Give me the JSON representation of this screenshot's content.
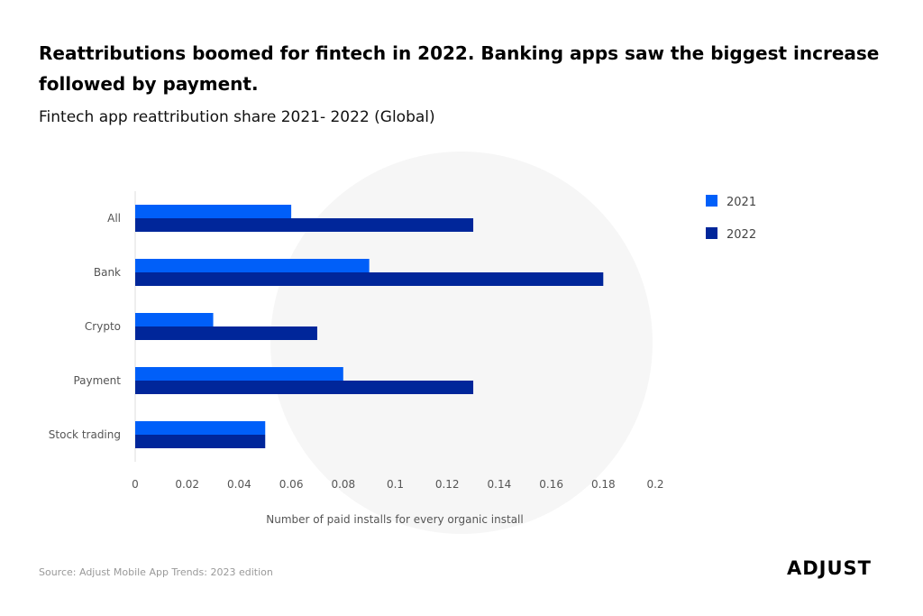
{
  "title": "Reattributions boomed for fintech in 2022. Banking apps saw the biggest increase followed by payment.",
  "subtitle": "Fintech app reattribution share 2021- 2022 (Global)",
  "source": "Source: Adjust Mobile App Trends: 2023 edition",
  "logo": "ADJUST",
  "chart_data": {
    "type": "bar",
    "orientation": "horizontal",
    "categories": [
      "All",
      "Bank",
      "Crypto",
      "Payment",
      "Stock trading"
    ],
    "series": [
      {
        "name": "2021",
        "color": "#005ff9",
        "values": [
          0.06,
          0.09,
          0.03,
          0.08,
          0.05
        ]
      },
      {
        "name": "2022",
        "color": "#00269a",
        "values": [
          0.13,
          0.18,
          0.07,
          0.13,
          0.05
        ]
      }
    ],
    "xlabel": "Number of paid installs for every organic install",
    "ylabel": "",
    "xlim": [
      0,
      0.2
    ],
    "xticks": [
      "0",
      "0.02",
      "0.04",
      "0.06",
      "0.08",
      "0.1",
      "0.12",
      "0.14",
      "0.16",
      "0.18",
      "0.2"
    ],
    "grid": false,
    "legend": "top-right"
  }
}
